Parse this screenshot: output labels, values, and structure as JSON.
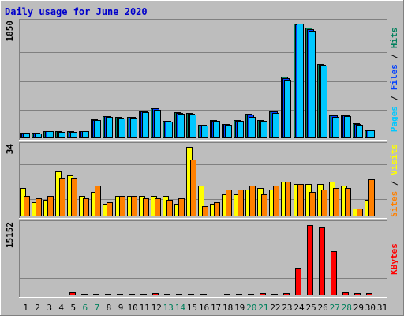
{
  "title": "Daily usage for June 2020",
  "colors": {
    "background": "#bdbdbd",
    "frame_light": "#ffffff",
    "frame_dark": "#808080",
    "title": "#0000cc",
    "hits": "#00805c",
    "files": "#0040ff",
    "pages": "#00c8ff",
    "visits": "#ffff00",
    "sites": "#ff8000",
    "kbytes": "#ff0000",
    "weekday_label": "#000000",
    "weekend_label": "#00805c"
  },
  "chart_data": [
    {
      "type": "bar",
      "panel": "hits-files-pages",
      "ymax_label": "1850",
      "ylim": [
        0,
        1850
      ],
      "legend": [
        {
          "label": "Hits",
          "color": "#00805c"
        },
        {
          "label": "Files",
          "color": "#0040ff"
        },
        {
          "label": "Pages",
          "color": "#00c8ff"
        }
      ],
      "legend_sep": " / ",
      "series": [
        {
          "name": "Hits",
          "values": [
            90,
            85,
            120,
            110,
            110,
            115,
            300,
            360,
            340,
            350,
            440,
            490,
            280,
            420,
            410,
            220,
            290,
            230,
            290,
            390,
            290,
            440,
            990,
            1850,
            1780,
            1200,
            370,
            380,
            240,
            130
          ]
        },
        {
          "name": "Files",
          "values": [
            88,
            83,
            115,
            108,
            108,
            112,
            295,
            355,
            335,
            345,
            435,
            480,
            275,
            410,
            395,
            215,
            285,
            225,
            285,
            380,
            285,
            430,
            970,
            1840,
            1760,
            1190,
            365,
            375,
            235,
            128
          ]
        },
        {
          "name": "Pages",
          "values": [
            85,
            80,
            110,
            100,
            100,
            110,
            290,
            340,
            320,
            335,
            420,
            460,
            270,
            390,
            380,
            210,
            280,
            220,
            280,
            350,
            280,
            410,
            950,
            1850,
            1740,
            1180,
            350,
            360,
            220,
            125
          ]
        }
      ]
    },
    {
      "type": "bar",
      "panel": "visits-sites",
      "ymax_label": "34",
      "ylim": [
        0,
        34
      ],
      "legend": [
        {
          "label": "Visits",
          "color": "#ffff00"
        },
        {
          "label": "Sites",
          "color": "#ff8000"
        }
      ],
      "legend_sep": " / ",
      "series": [
        {
          "name": "Visits",
          "values": [
            14,
            7,
            8,
            22,
            20,
            10,
            12,
            6,
            10,
            10,
            10,
            10,
            10,
            6,
            34,
            15,
            6,
            11,
            11,
            13,
            14,
            13,
            17,
            16,
            16,
            16,
            17,
            15,
            4,
            8
          ]
        },
        {
          "name": "Sites",
          "values": [
            10,
            9,
            10,
            19,
            19,
            9,
            15,
            7,
            10,
            10,
            9,
            9,
            8,
            9,
            28,
            5,
            7,
            13,
            13,
            15,
            11,
            15,
            17,
            16,
            12,
            13,
            14,
            14,
            4,
            18
          ]
        }
      ]
    },
    {
      "type": "bar",
      "panel": "kbytes",
      "ymax_label": "15152",
      "ylim": [
        0,
        15152
      ],
      "legend": [
        {
          "label": "KBytes",
          "color": "#ff0000"
        }
      ],
      "legend_sep": "",
      "series": [
        {
          "name": "KBytes",
          "values": [
            250,
            250,
            250,
            250,
            600,
            300,
            300,
            350,
            400,
            400,
            350,
            500,
            350,
            400,
            400,
            350,
            250,
            350,
            300,
            350,
            500,
            400,
            550,
            6000,
            15152,
            14800,
            9500,
            600,
            450,
            500
          ]
        }
      ]
    }
  ],
  "categories": [
    "1",
    "2",
    "3",
    "4",
    "5",
    "6",
    "7",
    "8",
    "9",
    "10",
    "11",
    "12",
    "13",
    "14",
    "15",
    "16",
    "17",
    "18",
    "19",
    "20",
    "21",
    "22",
    "23",
    "24",
    "25",
    "26",
    "27",
    "28",
    "29",
    "30",
    "31"
  ],
  "weekend_days": [
    "6",
    "7",
    "13",
    "14",
    "20",
    "21",
    "27",
    "28"
  ]
}
